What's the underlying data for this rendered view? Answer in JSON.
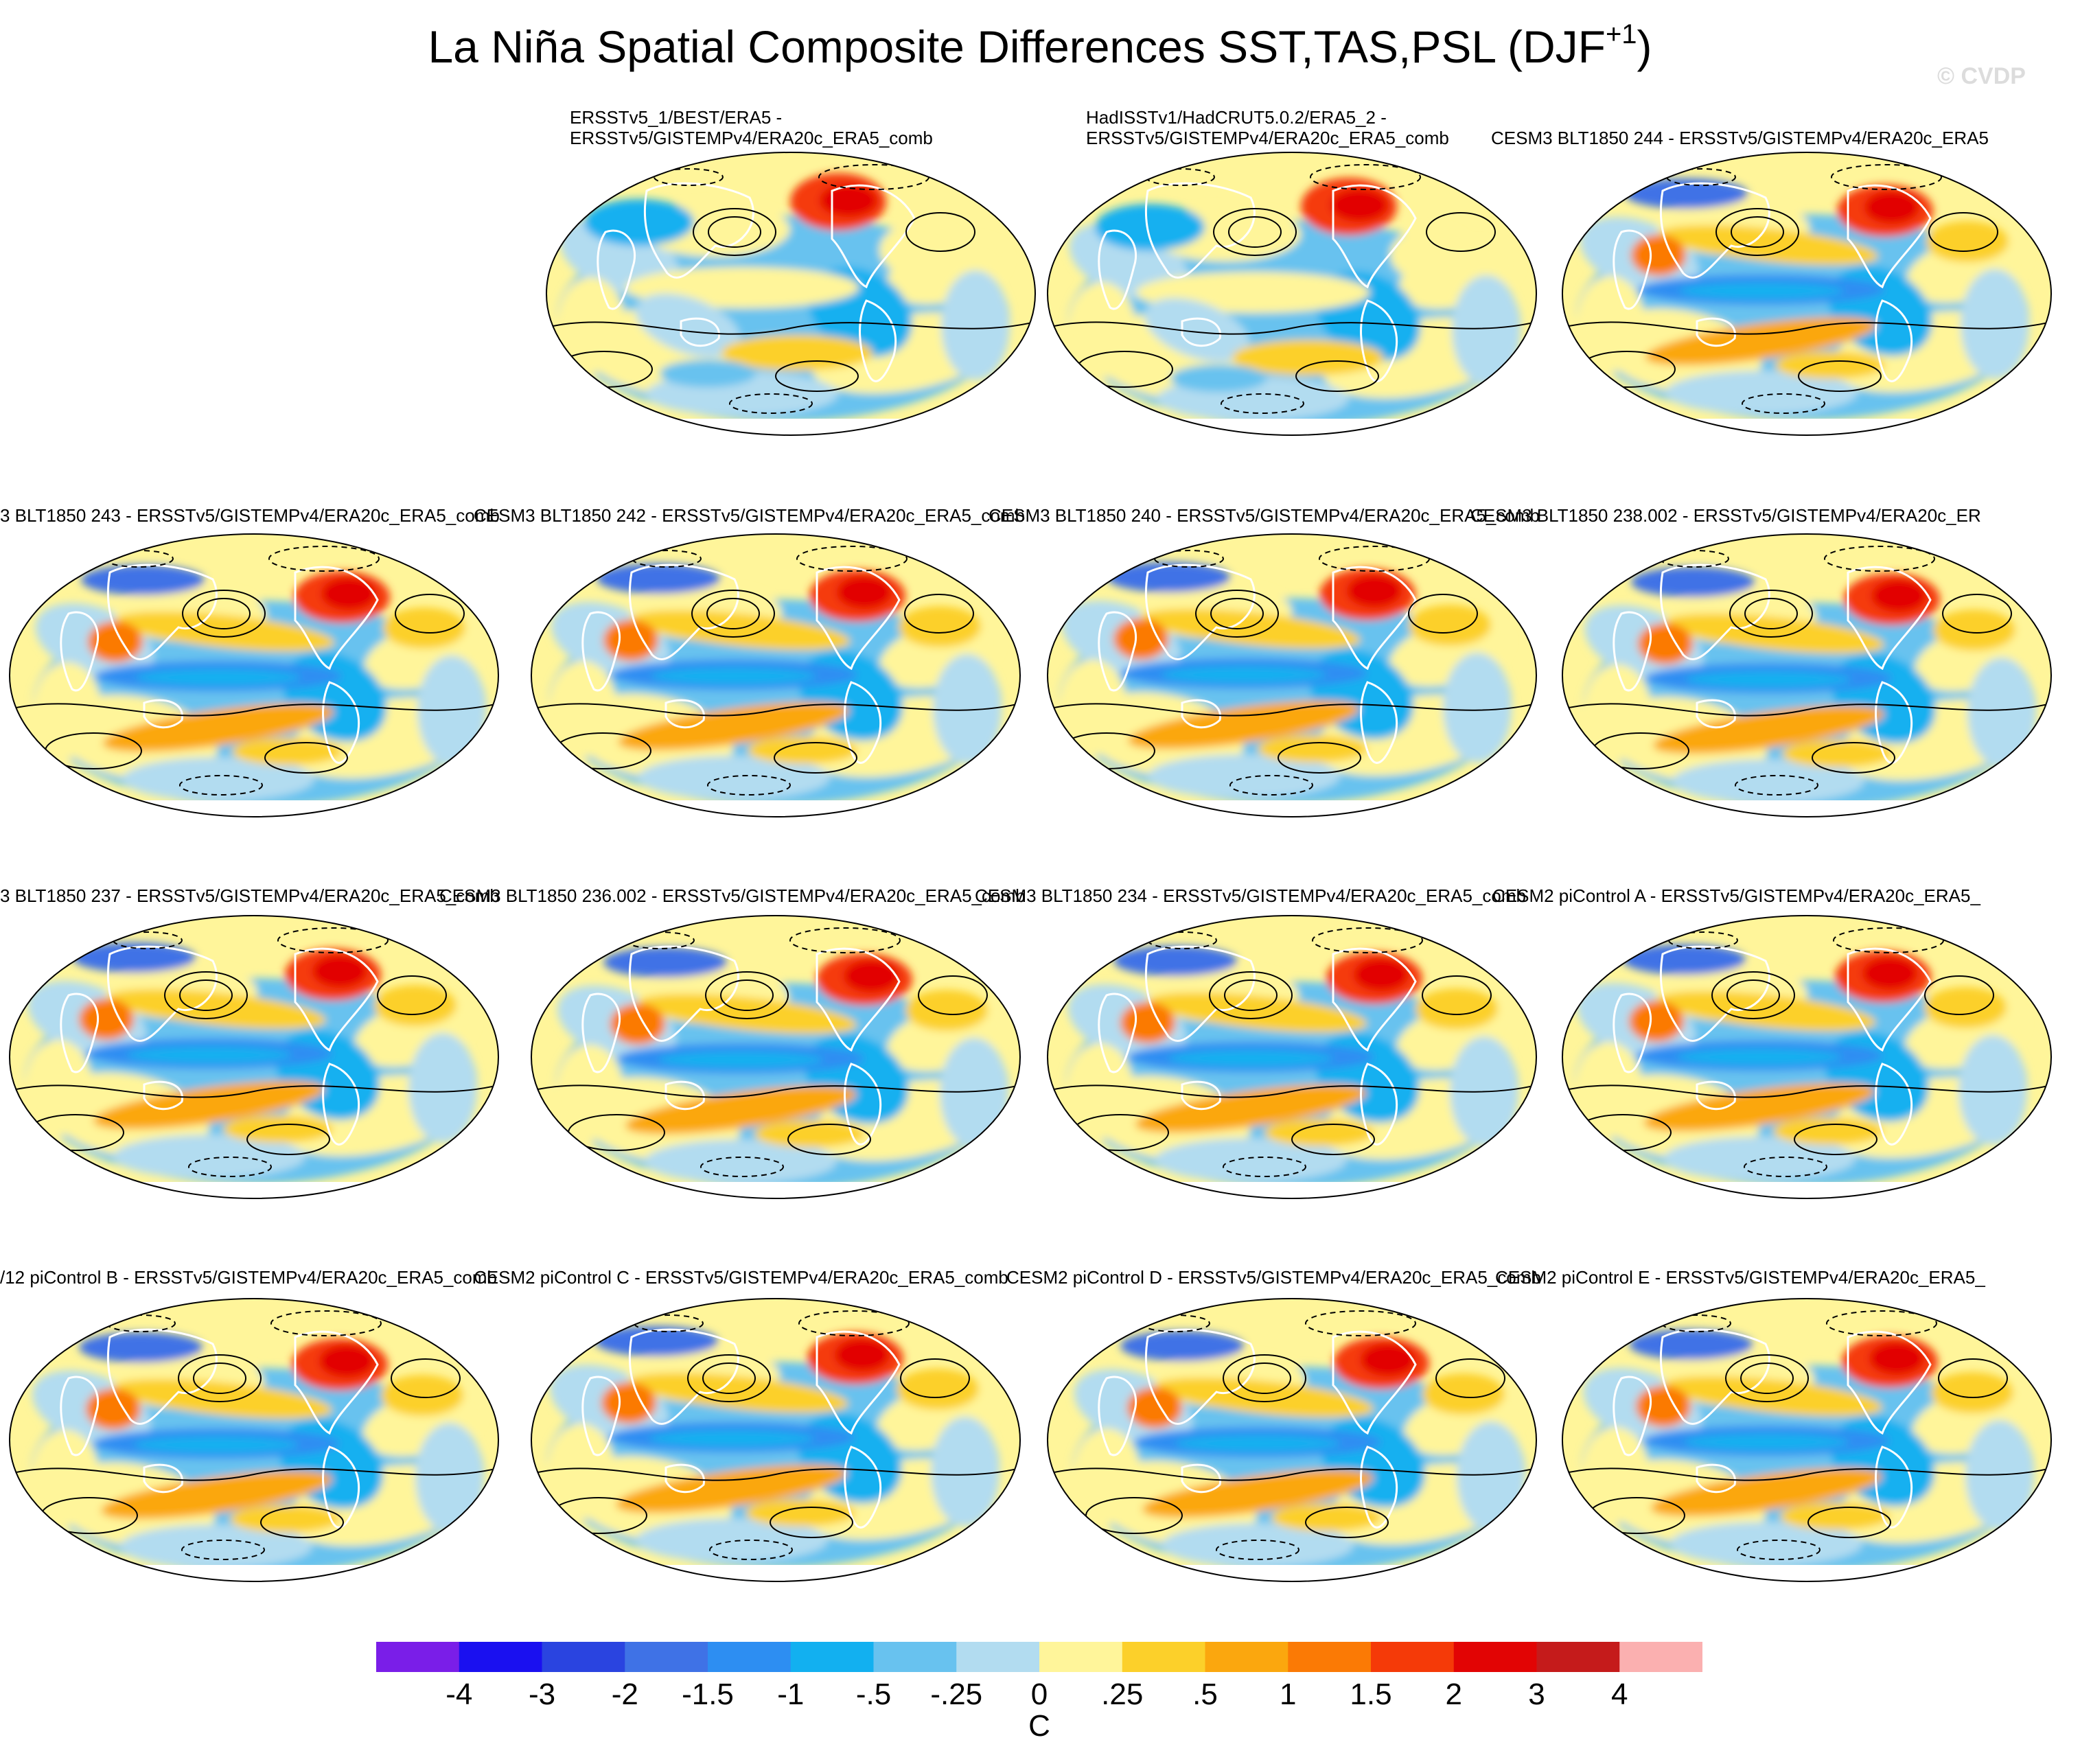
{
  "title": {
    "main": "La Niña Spatial Composite Differences SST,TAS,PSL (DJF",
    "superscript": "+1",
    "suffix": ")"
  },
  "watermark": "© CVDP",
  "panels": [
    {
      "title_lines": [
        "ERSSTv5_1/BEST/ERA5 -",
        "ERSSTv5/GISTEMPv4/ERA20c_ERA5_comb"
      ],
      "pattern": "obs1"
    },
    {
      "title_lines": [
        "HadISSTv1/HadCRUT5.0.2/ERA5_2 -",
        "ERSSTv5/GISTEMPv4/ERA20c_ERA5_comb"
      ],
      "pattern": "obs2"
    },
    {
      "title_lines": [
        "CESM3 BLT1850 244 - ERSSTv5/GISTEMPv4/ERA20c_ERA5"
      ],
      "pattern": "model"
    },
    {
      "title_lines": [
        "3 BLT1850 243 - ERSSTv5/GISTEMPv4/ERA20c_ERA5_comb"
      ],
      "pattern": "model"
    },
    {
      "title_lines": [
        "CESM3 BLT1850 242 - ERSSTv5/GISTEMPv4/ERA20c_ERA5_comb"
      ],
      "pattern": "model"
    },
    {
      "title_lines": [
        "CESM3 BLT1850 240 - ERSSTv5/GISTEMPv4/ERA20c_ERA5_comb"
      ],
      "pattern": "model"
    },
    {
      "title_lines": [
        "CESM3 BLT1850 238.002 - ERSSTv5/GISTEMPv4/ERA20c_ER"
      ],
      "pattern": "model"
    },
    {
      "title_lines": [
        "3 BLT1850 237 - ERSSTv5/GISTEMPv4/ERA20c_ERA5_comb"
      ],
      "pattern": "model"
    },
    {
      "title_lines": [
        "CESM3 BLT1850 236.002 - ERSSTv5/GISTEMPv4/ERA20c_ERA5_comb"
      ],
      "pattern": "model"
    },
    {
      "title_lines": [
        "CESM3 BLT1850 234 - ERSSTv5/GISTEMPv4/ERA20c_ERA5_comb"
      ],
      "pattern": "model"
    },
    {
      "title_lines": [
        "CESM2 piControl A - ERSSTv5/GISTEMPv4/ERA20c_ERA5_"
      ],
      "pattern": "model"
    },
    {
      "title_lines": [
        "/12 piControl B - ERSSTv5/GISTEMPv4/ERA20c_ERA5_comb"
      ],
      "pattern": "model"
    },
    {
      "title_lines": [
        "CESM2 piControl C - ERSSTv5/GISTEMPv4/ERA20c_ERA5_comb"
      ],
      "pattern": "model"
    },
    {
      "title_lines": [
        "CESM2 piControl D - ERSSTv5/GISTEMPv4/ERA20c_ERA5_comb"
      ],
      "pattern": "model"
    },
    {
      "title_lines": [
        "CESM2 piControl E - ERSSTv5/GISTEMPv4/ERA20c_ERA5_"
      ],
      "pattern": "model"
    }
  ],
  "colorbar": {
    "units": "C",
    "tick_labels": [
      "-4",
      "-3",
      "-2",
      "-1.5",
      "-1",
      "-.5",
      "-.25",
      "0",
      ".25",
      ".5",
      "1",
      "1.5",
      "2",
      "3",
      "4"
    ],
    "colors": [
      "#7a1ee8",
      "#1a10f0",
      "#2a44e0",
      "#3f72e6",
      "#2d8ef2",
      "#12b0f0",
      "#68c2ef",
      "#b2dcf0",
      "#fff59a",
      "#fcd02a",
      "#fba70e",
      "#fb7a05",
      "#f53a08",
      "#e20404",
      "#c51b1b",
      "#fbb0b0"
    ]
  }
}
